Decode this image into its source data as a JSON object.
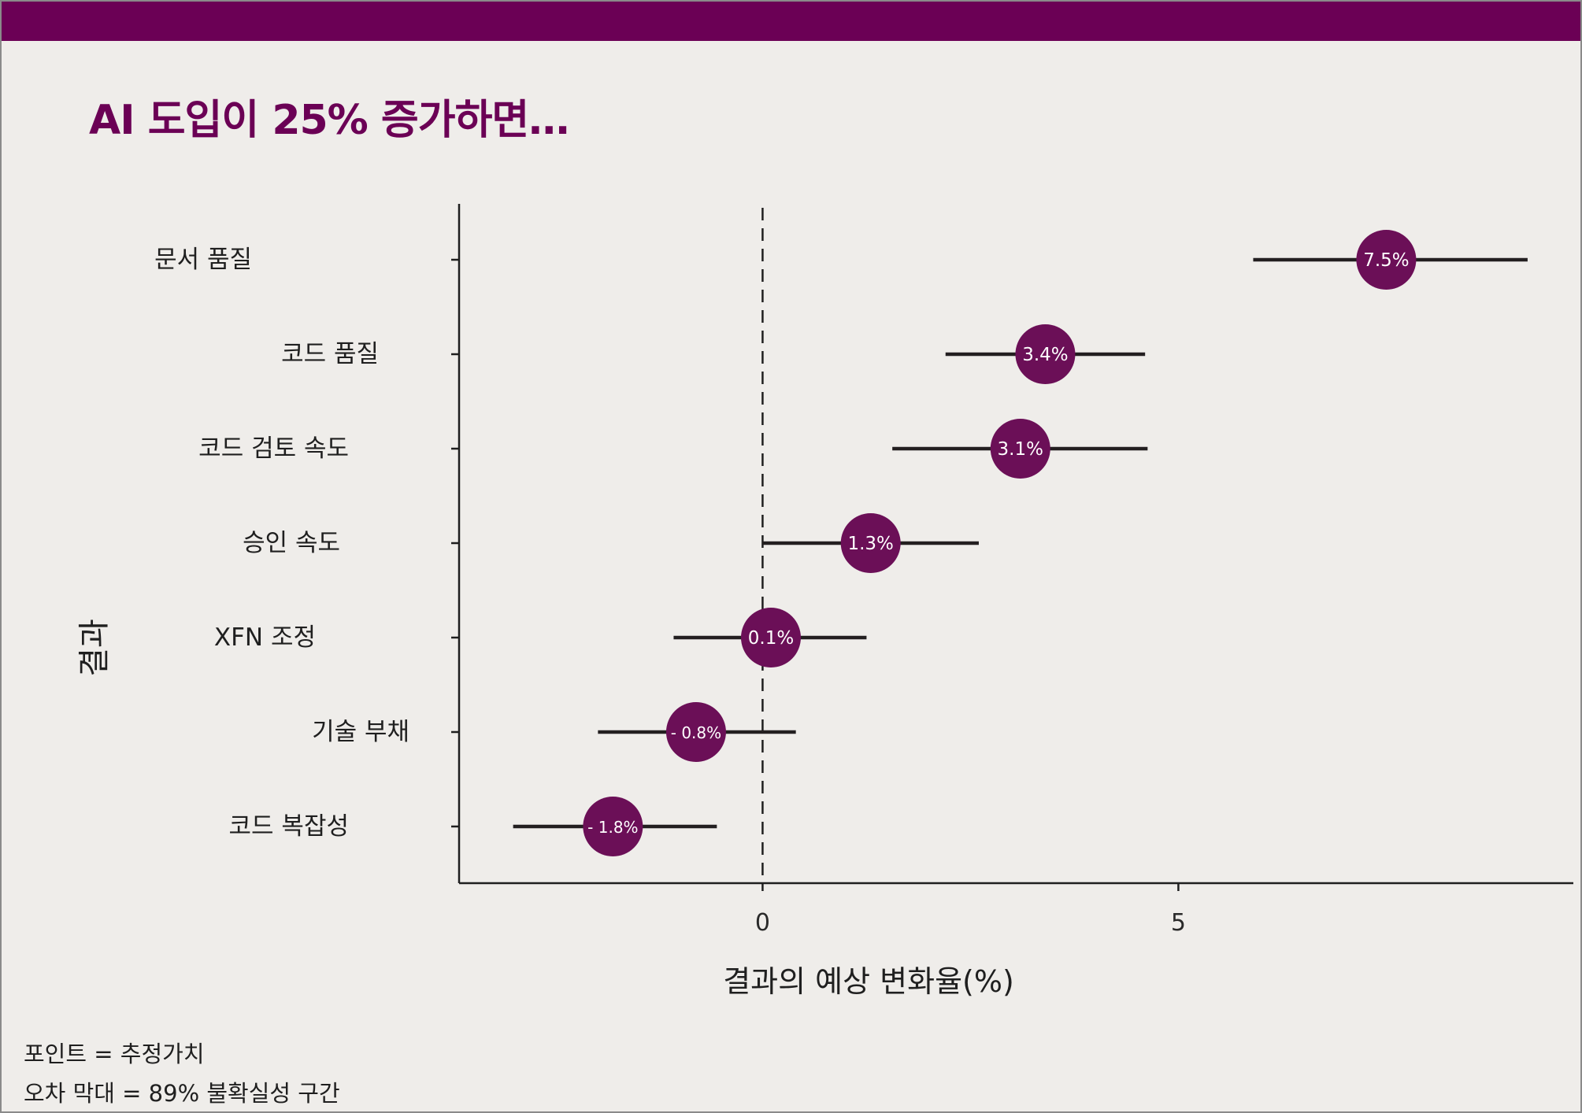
{
  "title": "AI 도입이 25% 증가하면…",
  "colors": {
    "accent": "#6b0055",
    "point_fill": "#6b0f57",
    "point_label": "#ffffff",
    "error_bar": "#231f20",
    "axis": "#1f1f1f",
    "background": "#efedea"
  },
  "chart_data": {
    "type": "scatter",
    "subtype": "forest-plot with horizontal error bars",
    "title": "AI 도입이 25% 증가하면…",
    "xlabel": "결과의 예상 변화율(%)",
    "ylabel": "결과",
    "xlim": [
      -3.65,
      9.75
    ],
    "xticks": [
      0,
      5
    ],
    "reference_line_x": 0,
    "grid": false,
    "categories": [
      "문서 품질",
      "코드 품질",
      "코드 검토 속도",
      "승인 속도",
      "XFN 조정",
      "기술 부채",
      "코드 복잡성"
    ],
    "series": [
      {
        "estimates": [
          7.5,
          3.4,
          3.1,
          1.3,
          0.1,
          -0.8,
          -1.8
        ],
        "lower": [
          5.9,
          2.2,
          1.56,
          0.0,
          -1.07,
          -1.98,
          -3.0
        ],
        "upper": [
          9.2,
          4.6,
          4.63,
          2.6,
          1.25,
          0.4,
          -0.55
        ],
        "labels": [
          "7.5%",
          "3.4%",
          "3.1%",
          "1.3%",
          "0.1%",
          "- 0.8%",
          "- 1.8%"
        ]
      }
    ]
  },
  "notes": [
    "포인트 = 추정가치",
    "오차 막대 = 89% 불확실성 구간"
  ]
}
